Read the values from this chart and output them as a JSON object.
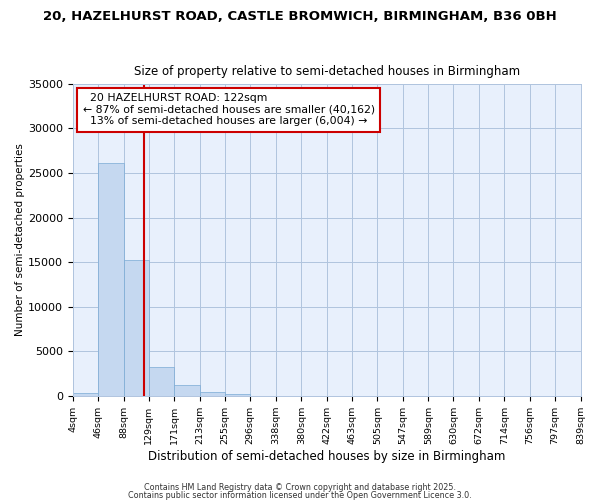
{
  "title_line1": "20, HAZELHURST ROAD, CASTLE BROMWICH, BIRMINGHAM, B36 0BH",
  "title_line2": "Size of property relative to semi-detached houses in Birmingham",
  "xlabel": "Distribution of semi-detached houses by size in Birmingham",
  "ylabel": "Number of semi-detached properties",
  "bin_edges": [
    4,
    46,
    88,
    129,
    171,
    213,
    255,
    296,
    338,
    380,
    422,
    463,
    505,
    547,
    589,
    630,
    672,
    714,
    756,
    797,
    839
  ],
  "bar_heights": [
    350,
    26100,
    15200,
    3200,
    1200,
    380,
    150,
    0,
    0,
    0,
    0,
    0,
    0,
    0,
    0,
    0,
    0,
    0,
    0,
    0
  ],
  "bar_color": "#c5d8f0",
  "bar_edge_color": "#7aaad4",
  "property_size": 122,
  "property_line_color": "#cc0000",
  "annotation_box_color": "#cc0000",
  "annotation_text": "  20 HAZELHURST ROAD: 122sqm  \n← 87% of semi-detached houses are smaller (40,162)\n  13% of semi-detached houses are larger (6,004) →",
  "ylim": [
    0,
    35000
  ],
  "yticks": [
    0,
    5000,
    10000,
    15000,
    20000,
    25000,
    30000,
    35000
  ],
  "footer_line1": "Contains HM Land Registry data © Crown copyright and database right 2025.",
  "footer_line2": "Contains public sector information licensed under the Open Government Licence 3.0.",
  "background_color": "#ffffff",
  "plot_bg_color": "#e8f0fc",
  "grid_color": "#b0c4de"
}
